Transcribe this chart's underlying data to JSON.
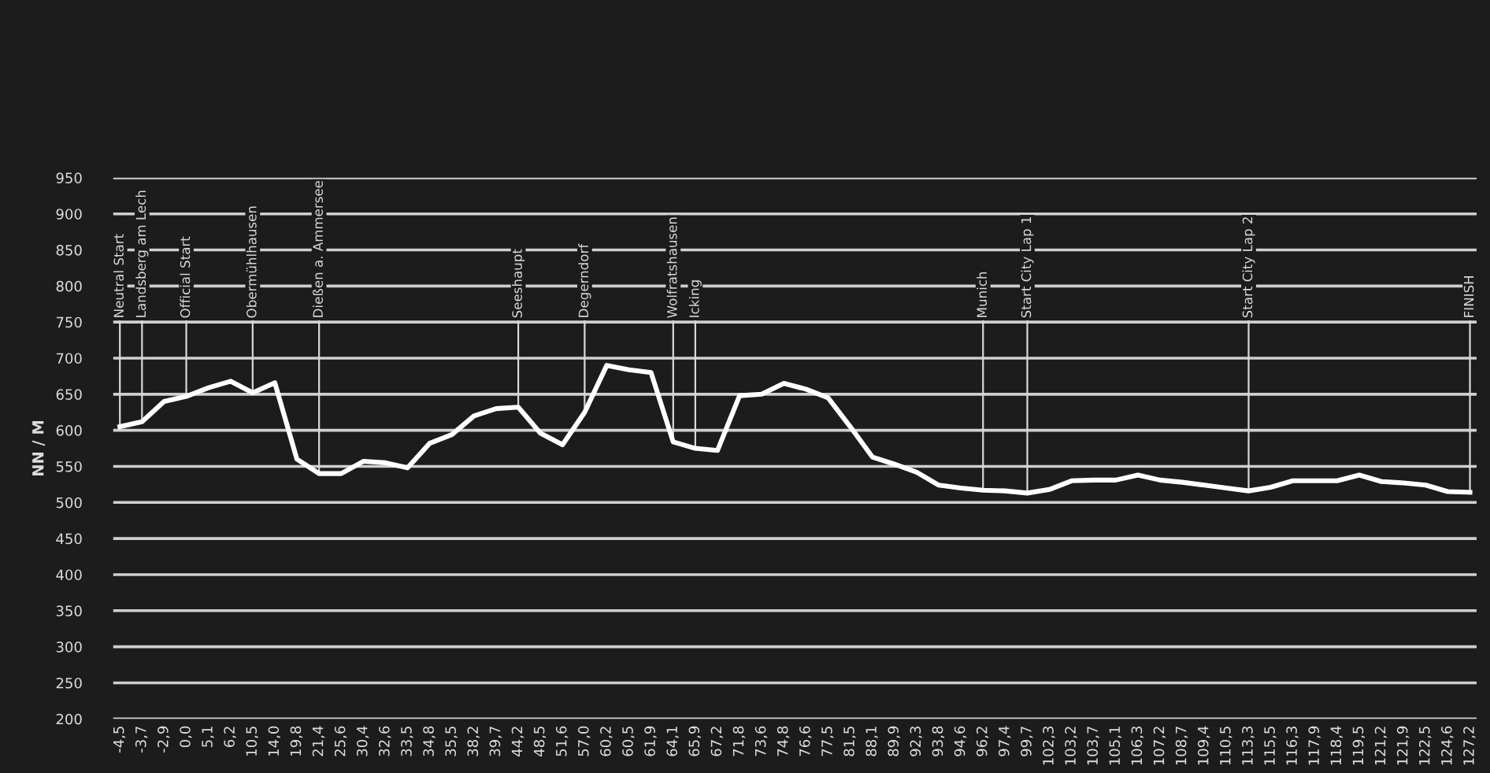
{
  "chart_data": {
    "type": "line",
    "ylabel": "NN / M",
    "categories": [
      "-4,5",
      "-3,7",
      "-2,9",
      "0,0",
      "5,1",
      "6,2",
      "10,5",
      "14,0",
      "19,8",
      "21,4",
      "25,6",
      "30,4",
      "32,6",
      "33,5",
      "34,8",
      "35,5",
      "38,2",
      "39,7",
      "44,2",
      "48,5",
      "51,6",
      "57,0",
      "60,2",
      "60,5",
      "61,9",
      "64,1",
      "65,9",
      "67,2",
      "71,8",
      "73,6",
      "74,8",
      "76,6",
      "77,5",
      "81,5",
      "88,1",
      "89,9",
      "92,3",
      "93,8",
      "94,6",
      "96,2",
      "97,4",
      "99,7",
      "102,3",
      "103,2",
      "103,7",
      "105,1",
      "106,3",
      "107,2",
      "108,7",
      "109,4",
      "110,5",
      "113,3",
      "115,5",
      "116,3",
      "117,9",
      "118,4",
      "119,5",
      "121,2",
      "121,9",
      "122,5",
      "124,6",
      "127,2"
    ],
    "series": [
      {
        "color": "#ffffff",
        "values": [
          605,
          612,
          640,
          647,
          659,
          668,
          652,
          666,
          560,
          540,
          540,
          557,
          555,
          548,
          582,
          594,
          620,
          630,
          632,
          596,
          580,
          625,
          690,
          684,
          680,
          584,
          575,
          572,
          648,
          650,
          665,
          657,
          645,
          605,
          563,
          553,
          542,
          524,
          520,
          517,
          516,
          513,
          518,
          530,
          531,
          531,
          538,
          531,
          528,
          524,
          520,
          516,
          521,
          530,
          530,
          530,
          538,
          529,
          527,
          524,
          515,
          514
        ]
      }
    ],
    "ylim": [
      200,
      950
    ],
    "yticks": [
      200,
      250,
      300,
      350,
      400,
      450,
      500,
      550,
      600,
      650,
      700,
      750,
      800,
      850,
      900,
      950
    ],
    "grid": "y",
    "legend": false,
    "marker": "none",
    "line_style": "solid",
    "ref_lines": [
      {
        "axis": "x",
        "value": "-4,5",
        "label": "Neutral Start",
        "color": "#d8d8d8"
      },
      {
        "axis": "x",
        "value": "-3,7",
        "label": "Landsberg am Lech",
        "color": "#d8d8d8"
      },
      {
        "axis": "x",
        "value": "0,0",
        "label": "Official Start",
        "color": "#d8d8d8"
      },
      {
        "axis": "x",
        "value": "10,5",
        "label": "Obermühlhausen",
        "color": "#d8d8d8"
      },
      {
        "axis": "x",
        "value": "21,4",
        "label": "Dießen a. Ammersee",
        "color": "#d8d8d8"
      },
      {
        "axis": "x",
        "value": "44,2",
        "label": "Seeshaupt",
        "color": "#d8d8d8"
      },
      {
        "axis": "x",
        "value": "57,0",
        "label": "Degerndorf",
        "color": "#d8d8d8"
      },
      {
        "axis": "x",
        "value": "64,1",
        "label": "Wolfratshausen",
        "color": "#d8d8d8"
      },
      {
        "axis": "x",
        "value": "65,9",
        "label": "Icking",
        "color": "#d8d8d8"
      },
      {
        "axis": "x",
        "value": "96,2",
        "label": "Munich",
        "color": "#d8d8d8"
      },
      {
        "axis": "x",
        "value": "99,7",
        "label": "Start City Lap 1",
        "color": "#d8d8d8"
      },
      {
        "axis": "x",
        "value": "113,3",
        "label": "Start City Lap 2",
        "color": "#d8d8d8"
      },
      {
        "axis": "x",
        "value": "127,2",
        "label": "FINISH",
        "color": "#d8d8d8"
      }
    ]
  }
}
